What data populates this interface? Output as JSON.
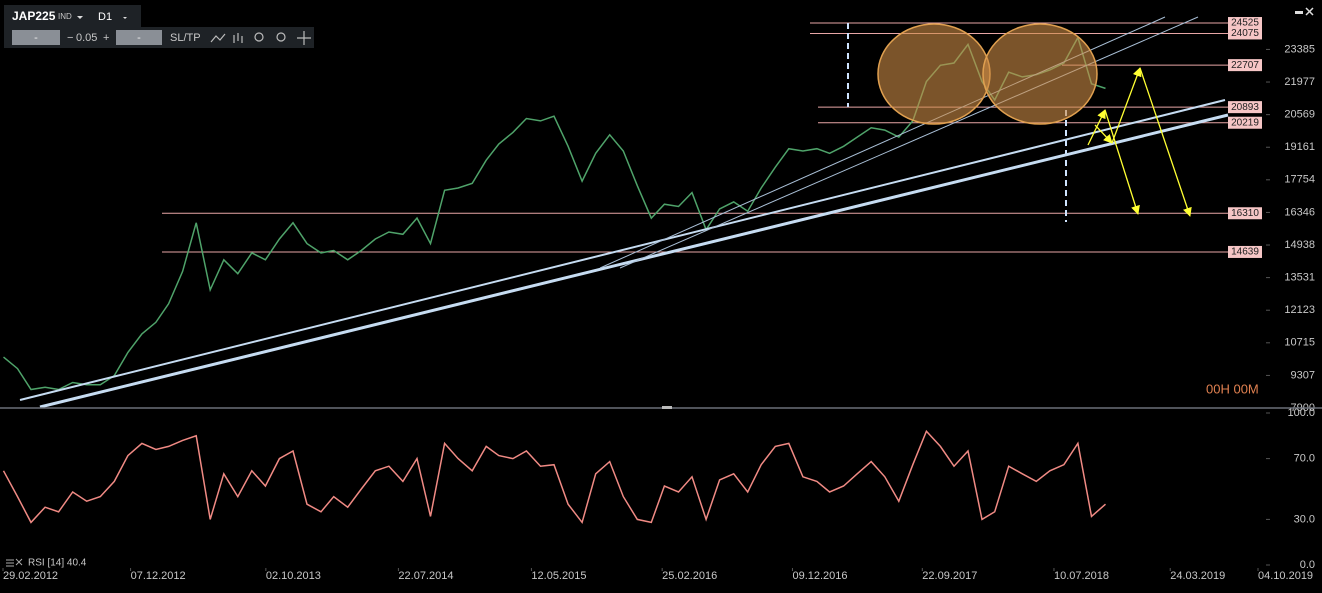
{
  "toolbar": {
    "symbol": "JAP225",
    "market": "IND",
    "timeframe": "D1",
    "input_left": "-",
    "minus": "−",
    "step": "0.05",
    "plus": "+",
    "input_right": "-",
    "sltp": "SL/TP"
  },
  "countdown": "00H 00M",
  "chart_data": [
    {
      "type": "line",
      "color": "#4fa36a",
      "x": [
        "01.03.2012",
        "01.04.2012",
        "01.05.2012",
        "01.06.2012",
        "01.07.2012",
        "01.08.2012",
        "01.09.2012",
        "01.10.2012",
        "01.11.2012",
        "01.12.2012",
        "01.01.2013",
        "01.02.2013",
        "01.03.2013",
        "01.04.2013",
        "01.05.2013",
        "01.06.2013",
        "01.07.2013",
        "01.08.2013",
        "01.09.2013",
        "01.10.2013",
        "01.11.2013",
        "01.12.2013",
        "01.01.2014",
        "01.02.2014",
        "01.03.2014",
        "01.04.2014",
        "01.05.2014",
        "01.06.2014",
        "01.07.2014",
        "01.08.2014",
        "01.09.2014",
        "01.10.2014",
        "01.11.2014",
        "01.12.2014",
        "01.01.2015",
        "01.02.2015",
        "01.03.2015",
        "01.04.2015",
        "01.05.2015",
        "01.06.2015",
        "01.07.2015",
        "01.08.2015",
        "01.09.2015",
        "01.10.2015",
        "01.11.2015",
        "01.12.2015",
        "01.01.2016",
        "01.02.2016",
        "01.03.2016",
        "01.04.2016",
        "01.05.2016",
        "01.06.2016",
        "01.07.2016",
        "01.08.2016",
        "01.09.2016",
        "01.10.2016",
        "01.11.2016",
        "01.12.2016",
        "01.01.2017",
        "01.02.2017",
        "01.03.2017",
        "01.04.2017",
        "01.05.2017",
        "01.06.2017",
        "01.07.2017",
        "01.08.2017",
        "01.09.2017",
        "01.10.2017",
        "01.11.2017",
        "01.12.2017",
        "01.01.2018",
        "01.02.2018",
        "01.03.2018",
        "01.04.2018",
        "01.05.2018",
        "01.06.2018",
        "01.07.2018",
        "01.08.2018",
        "01.09.2018",
        "01.10.2018",
        "01.11.2018"
      ],
      "values": [
        10100,
        9600,
        8700,
        8800,
        8700,
        9000,
        8900,
        8900,
        9300,
        10300,
        11100,
        11600,
        12400,
        13800,
        15900,
        13000,
        14300,
        13700,
        14600,
        14300,
        15200,
        15900,
        15000,
        14600,
        14700,
        14300,
        14700,
        15200,
        15500,
        15400,
        16100,
        15000,
        17300,
        17400,
        17600,
        18600,
        19300,
        19800,
        20400,
        20300,
        20500,
        19200,
        17700,
        18900,
        19700,
        19000,
        17500,
        16100,
        16700,
        16600,
        17200,
        15600,
        16500,
        16800,
        16400,
        17400,
        18300,
        19100,
        19000,
        19100,
        18900,
        19200,
        19600,
        20000,
        19900,
        19600,
        20300,
        22000,
        22700,
        22800,
        23600,
        22000,
        21200,
        22400,
        22200,
        22300,
        22500,
        22800,
        23900,
        21900,
        21700
      ],
      "ylim": [
        7900,
        25390
      ],
      "yticks": [
        7900,
        9307,
        10715,
        12123,
        13531,
        14938,
        16346,
        17754,
        19161,
        20569,
        21977,
        23385
      ],
      "xlim": [
        "29.02.2012",
        "04.10.2019"
      ],
      "xticks": [
        "29.02.2012",
        "07.12.2012",
        "02.10.2013",
        "22.07.2014",
        "12.05.2015",
        "25.02.2016",
        "09.12.2016",
        "22.09.2017",
        "10.07.2018",
        "24.03.2019",
        "04.10.2019"
      ],
      "levels": [
        24525,
        24075,
        22707,
        20893,
        20219,
        16310,
        14639
      ]
    },
    {
      "type": "line",
      "label": "RSI [14] 40.4",
      "color": "#f08a84",
      "values": [
        62,
        45,
        28,
        38,
        35,
        48,
        42,
        45,
        55,
        72,
        80,
        76,
        78,
        82,
        85,
        30,
        60,
        45,
        62,
        52,
        70,
        75,
        40,
        35,
        45,
        38,
        50,
        62,
        65,
        55,
        70,
        32,
        80,
        70,
        62,
        78,
        72,
        70,
        75,
        65,
        66,
        40,
        28,
        60,
        68,
        45,
        30,
        28,
        52,
        48,
        58,
        30,
        56,
        60,
        48,
        66,
        78,
        80,
        58,
        55,
        48,
        52,
        60,
        68,
        58,
        42,
        66,
        88,
        78,
        65,
        75,
        30,
        35,
        65,
        60,
        55,
        62,
        66,
        80,
        32,
        40
      ],
      "ylim": [
        0,
        100
      ],
      "yticks": [
        {
          "value": 0,
          "label": "0.0"
        },
        {
          "value": 30,
          "label": "30.0"
        },
        {
          "value": 70,
          "label": "70.0"
        },
        {
          "value": 100,
          "label": "100.0"
        }
      ]
    }
  ]
}
